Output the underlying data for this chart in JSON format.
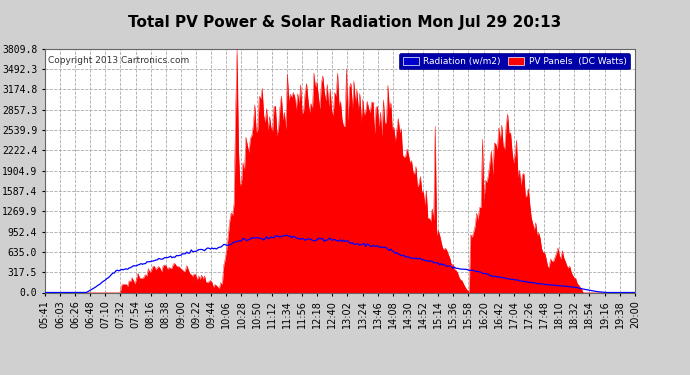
{
  "title": "Total PV Power & Solar Radiation Mon Jul 29 20:13",
  "copyright": "Copyright 2013 Cartronics.com",
  "legend_radiation": "Radiation (w/m2)",
  "legend_pv": "PV Panels  (DC Watts)",
  "yticks": [
    0.0,
    317.5,
    635.0,
    952.4,
    1269.9,
    1587.4,
    1904.9,
    2222.4,
    2539.9,
    2857.3,
    3174.8,
    3492.3,
    3809.8
  ],
  "ymax": 3809.8,
  "bg_color": "#d0d0d0",
  "plot_bg_color": "#ffffff",
  "grid_color": "#aaaaaa",
  "red_fill_color": "#ff0000",
  "blue_line_color": "#0000ff",
  "title_fontsize": 11,
  "tick_fontsize": 7,
  "n_points": 400,
  "x_labels": [
    "05:41",
    "06:03",
    "06:26",
    "06:48",
    "07:10",
    "07:32",
    "07:54",
    "08:16",
    "08:38",
    "09:00",
    "09:22",
    "09:44",
    "10:06",
    "10:28",
    "10:50",
    "11:12",
    "11:34",
    "11:56",
    "12:18",
    "12:40",
    "13:02",
    "13:24",
    "13:46",
    "14:08",
    "14:30",
    "14:52",
    "15:14",
    "15:36",
    "15:58",
    "16:20",
    "16:42",
    "17:04",
    "17:26",
    "17:48",
    "18:10",
    "18:32",
    "18:54",
    "19:16",
    "19:38",
    "20:00"
  ]
}
